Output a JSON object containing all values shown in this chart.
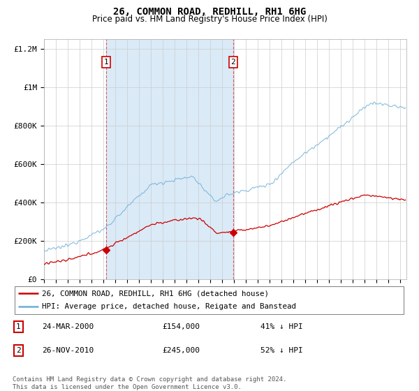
{
  "title": "26, COMMON ROAD, REDHILL, RH1 6HG",
  "subtitle": "Price paid vs. HM Land Registry's House Price Index (HPI)",
  "legend_line1": "26, COMMON ROAD, REDHILL, RH1 6HG (detached house)",
  "legend_line2": "HPI: Average price, detached house, Reigate and Banstead",
  "footnote": "Contains HM Land Registry data © Crown copyright and database right 2024.\nThis data is licensed under the Open Government Licence v3.0.",
  "sale1_date": "24-MAR-2000",
  "sale1_price": "£154,000",
  "sale1_hpi": "41% ↓ HPI",
  "sale2_date": "26-NOV-2010",
  "sale2_price": "£245,000",
  "sale2_hpi": "52% ↓ HPI",
  "sale1_x": 2000.23,
  "sale2_x": 2010.91,
  "sale1_y": 154000,
  "sale2_y": 245000,
  "hpi_color": "#6baed6",
  "price_color": "#cc0000",
  "marker_color": "#cc0000",
  "shade_color": "#daeaf7",
  "grid_color": "#cccccc",
  "ylim": [
    0,
    1250000
  ],
  "xlim_start": 1995.5,
  "xlim_end": 2025.5,
  "yticks": [
    0,
    200000,
    400000,
    600000,
    800000,
    1000000,
    1200000
  ],
  "ylabels": [
    "£0",
    "£200K",
    "£400K",
    "£600K",
    "£800K",
    "£1M",
    "£1.2M"
  ]
}
